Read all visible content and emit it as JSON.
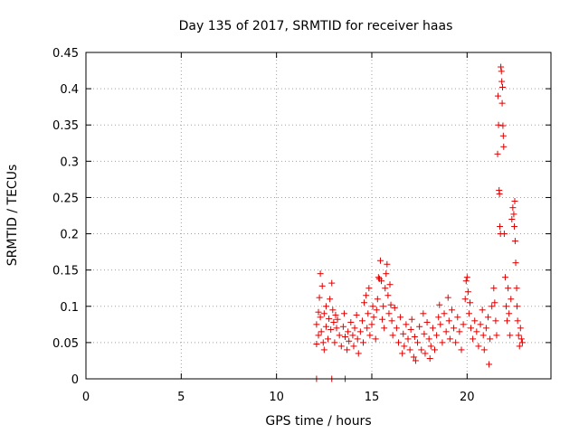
{
  "chart_data": {
    "type": "scatter",
    "title": "Day 135 of 2017, SRMTID for receiver haas",
    "xlabel": "GPS time / hours",
    "ylabel": "SRMTID / TECUs",
    "xlim": [
      0,
      24.4
    ],
    "ylim": [
      0,
      0.45
    ],
    "xticks": [
      0,
      5,
      10,
      15,
      20
    ],
    "yticks": [
      0,
      0.05,
      0.1,
      0.15,
      0.2,
      0.25,
      0.3,
      0.35,
      0.4,
      0.45
    ],
    "xtick_labels": [
      "0",
      "5",
      "10",
      "15",
      "20"
    ],
    "ytick_labels": [
      "0",
      "0.05",
      "0.1",
      "0.15",
      "0.2",
      "0.25",
      "0.3",
      "0.35",
      "0.4",
      "0.45"
    ],
    "grid": true,
    "marker": "plus",
    "color": "#e00000",
    "series": [
      {
        "points": [
          [
            12.1,
            0.0
          ],
          [
            12.9,
            0.0
          ],
          [
            13.6,
            0.0
          ],
          [
            12.1,
            0.048
          ],
          [
            12.1,
            0.075
          ],
          [
            12.2,
            0.092
          ],
          [
            12.2,
            0.06
          ],
          [
            12.25,
            0.112
          ],
          [
            12.3,
            0.145
          ],
          [
            12.3,
            0.085
          ],
          [
            12.35,
            0.065
          ],
          [
            12.4,
            0.128
          ],
          [
            12.45,
            0.05
          ],
          [
            12.5,
            0.09
          ],
          [
            12.5,
            0.04
          ],
          [
            12.6,
            0.1
          ],
          [
            12.6,
            0.072
          ],
          [
            12.7,
            0.055
          ],
          [
            12.75,
            0.083
          ],
          [
            12.8,
            0.11
          ],
          [
            12.85,
            0.068
          ],
          [
            12.9,
            0.132
          ],
          [
            12.95,
            0.095
          ],
          [
            13.0,
            0.078
          ],
          [
            13.05,
            0.05
          ],
          [
            13.1,
            0.088
          ],
          [
            13.15,
            0.07
          ],
          [
            13.2,
            0.082
          ],
          [
            13.3,
            0.06
          ],
          [
            13.4,
            0.045
          ],
          [
            13.5,
            0.072
          ],
          [
            13.55,
            0.09
          ],
          [
            13.6,
            0.058
          ],
          [
            13.7,
            0.04
          ],
          [
            13.75,
            0.065
          ],
          [
            13.8,
            0.052
          ],
          [
            13.9,
            0.078
          ],
          [
            14.0,
            0.06
          ],
          [
            14.05,
            0.045
          ],
          [
            14.1,
            0.07
          ],
          [
            14.2,
            0.088
          ],
          [
            14.25,
            0.055
          ],
          [
            14.3,
            0.035
          ],
          [
            14.4,
            0.065
          ],
          [
            14.5,
            0.08
          ],
          [
            14.55,
            0.05
          ],
          [
            14.6,
            0.105
          ],
          [
            14.7,
            0.115
          ],
          [
            14.75,
            0.07
          ],
          [
            14.8,
            0.09
          ],
          [
            14.85,
            0.125
          ],
          [
            14.9,
            0.06
          ],
          [
            15.0,
            0.075
          ],
          [
            15.05,
            0.1
          ],
          [
            15.1,
            0.085
          ],
          [
            15.2,
            0.055
          ],
          [
            15.25,
            0.095
          ],
          [
            15.3,
            0.11
          ],
          [
            15.35,
            0.14
          ],
          [
            15.4,
            0.138
          ],
          [
            15.45,
            0.163
          ],
          [
            15.5,
            0.135
          ],
          [
            15.55,
            0.082
          ],
          [
            15.6,
            0.1
          ],
          [
            15.65,
            0.07
          ],
          [
            15.7,
            0.125
          ],
          [
            15.75,
            0.145
          ],
          [
            15.8,
            0.158
          ],
          [
            15.85,
            0.115
          ],
          [
            15.9,
            0.09
          ],
          [
            15.95,
            0.13
          ],
          [
            16.0,
            0.102
          ],
          [
            16.05,
            0.08
          ],
          [
            16.1,
            0.06
          ],
          [
            16.2,
            0.098
          ],
          [
            16.3,
            0.07
          ],
          [
            16.4,
            0.05
          ],
          [
            16.5,
            0.085
          ],
          [
            16.6,
            0.035
          ],
          [
            16.65,
            0.062
          ],
          [
            16.7,
            0.045
          ],
          [
            16.8,
            0.075
          ],
          [
            16.9,
            0.055
          ],
          [
            17.0,
            0.04
          ],
          [
            17.05,
            0.068
          ],
          [
            17.1,
            0.082
          ],
          [
            17.2,
            0.03
          ],
          [
            17.25,
            0.058
          ],
          [
            17.3,
            0.025
          ],
          [
            17.4,
            0.05
          ],
          [
            17.5,
            0.072
          ],
          [
            17.6,
            0.04
          ],
          [
            17.7,
            0.09
          ],
          [
            17.75,
            0.062
          ],
          [
            17.8,
            0.035
          ],
          [
            17.9,
            0.078
          ],
          [
            18.0,
            0.055
          ],
          [
            18.05,
            0.028
          ],
          [
            18.1,
            0.045
          ],
          [
            18.2,
            0.07
          ],
          [
            18.3,
            0.04
          ],
          [
            18.4,
            0.06
          ],
          [
            18.5,
            0.085
          ],
          [
            18.55,
            0.102
          ],
          [
            18.6,
            0.075
          ],
          [
            18.7,
            0.05
          ],
          [
            18.8,
            0.09
          ],
          [
            18.9,
            0.065
          ],
          [
            19.0,
            0.112
          ],
          [
            19.05,
            0.08
          ],
          [
            19.1,
            0.055
          ],
          [
            19.2,
            0.095
          ],
          [
            19.3,
            0.07
          ],
          [
            19.4,
            0.05
          ],
          [
            19.5,
            0.085
          ],
          [
            19.6,
            0.065
          ],
          [
            19.7,
            0.04
          ],
          [
            19.8,
            0.075
          ],
          [
            19.9,
            0.11
          ],
          [
            19.95,
            0.135
          ],
          [
            20.0,
            0.14
          ],
          [
            20.05,
            0.12
          ],
          [
            20.1,
            0.09
          ],
          [
            20.15,
            0.105
          ],
          [
            20.2,
            0.07
          ],
          [
            20.3,
            0.055
          ],
          [
            20.4,
            0.08
          ],
          [
            20.5,
            0.065
          ],
          [
            20.6,
            0.045
          ],
          [
            20.7,
            0.075
          ],
          [
            20.8,
            0.095
          ],
          [
            20.85,
            0.06
          ],
          [
            20.9,
            0.04
          ],
          [
            21.0,
            0.07
          ],
          [
            21.1,
            0.085
          ],
          [
            21.15,
            0.02
          ],
          [
            21.2,
            0.055
          ],
          [
            21.3,
            0.1
          ],
          [
            21.4,
            0.125
          ],
          [
            21.45,
            0.105
          ],
          [
            21.5,
            0.08
          ],
          [
            21.55,
            0.06
          ],
          [
            21.6,
            0.31
          ],
          [
            21.62,
            0.39
          ],
          [
            21.65,
            0.35
          ],
          [
            21.68,
            0.26
          ],
          [
            21.7,
            0.255
          ],
          [
            21.72,
            0.21
          ],
          [
            21.75,
            0.2
          ],
          [
            21.77,
            0.43
          ],
          [
            21.8,
            0.424
          ],
          [
            21.82,
            0.41
          ],
          [
            21.84,
            0.38
          ],
          [
            21.86,
            0.402
          ],
          [
            21.88,
            0.349
          ],
          [
            21.9,
            0.335
          ],
          [
            21.92,
            0.32
          ],
          [
            21.95,
            0.2
          ],
          [
            22.0,
            0.14
          ],
          [
            22.05,
            0.1
          ],
          [
            22.1,
            0.08
          ],
          [
            22.15,
            0.125
          ],
          [
            22.2,
            0.09
          ],
          [
            22.25,
            0.06
          ],
          [
            22.3,
            0.11
          ],
          [
            22.35,
            0.22
          ],
          [
            22.4,
            0.236
          ],
          [
            22.45,
            0.227
          ],
          [
            22.48,
            0.21
          ],
          [
            22.5,
            0.245
          ],
          [
            22.52,
            0.19
          ],
          [
            22.55,
            0.16
          ],
          [
            22.6,
            0.125
          ],
          [
            22.62,
            0.1
          ],
          [
            22.65,
            0.08
          ],
          [
            22.7,
            0.06
          ],
          [
            22.75,
            0.045
          ],
          [
            22.8,
            0.07
          ],
          [
            22.85,
            0.055
          ],
          [
            22.9,
            0.05
          ]
        ]
      }
    ]
  }
}
